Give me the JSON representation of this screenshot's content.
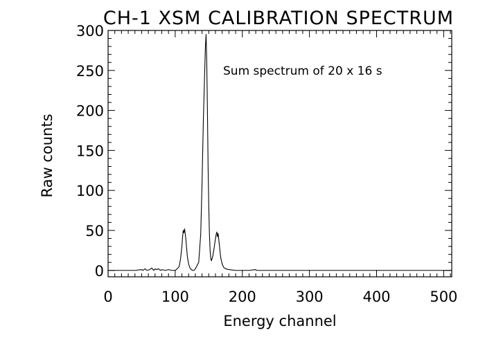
{
  "chart_data": {
    "type": "line",
    "title": "CH-1 XSM CALIBRATION SPECTRUM",
    "xlabel": "Energy channel",
    "ylabel": "Raw counts",
    "annotation": "Sum spectrum of 20 x 16 s",
    "xlim": [
      0,
      512
    ],
    "ylim": [
      -8,
      300
    ],
    "x_ticks": [
      0,
      100,
      200,
      300,
      400,
      500
    ],
    "x_tick_labels": [
      "0",
      "100",
      "200",
      "300",
      "400",
      "500"
    ],
    "y_ticks": [
      0,
      50,
      100,
      150,
      200,
      250,
      300
    ],
    "y_tick_labels": [
      "0",
      "50",
      "100",
      "150",
      "200",
      "250",
      "300"
    ],
    "grid": false,
    "series": [
      {
        "x": [
          0,
          40,
          50,
          52,
          55,
          58,
          62,
          65,
          68,
          70,
          72,
          75,
          78,
          80,
          85,
          90,
          95,
          100,
          103,
          106,
          108,
          110,
          111,
          112,
          113,
          114,
          115,
          116,
          117,
          118,
          120,
          122,
          124,
          126,
          128,
          130,
          135,
          138,
          140,
          142,
          144,
          145,
          146,
          147,
          148,
          149,
          150,
          151,
          152,
          153,
          154,
          156,
          158,
          160,
          161,
          162,
          163,
          164,
          165,
          166,
          167,
          168,
          170,
          172,
          175,
          180,
          190,
          200,
          210,
          220,
          221,
          222,
          230,
          300,
          400,
          500,
          512
        ],
        "y": [
          0,
          0,
          1,
          0,
          2,
          0,
          1,
          3,
          0,
          2,
          1,
          2,
          0,
          1,
          0,
          1,
          0,
          0,
          2,
          5,
          15,
          30,
          42,
          50,
          47,
          52,
          45,
          38,
          28,
          18,
          8,
          3,
          1,
          0,
          0,
          2,
          10,
          45,
          110,
          190,
          250,
          280,
          295,
          260,
          200,
          130,
          80,
          45,
          25,
          15,
          12,
          18,
          28,
          40,
          45,
          48,
          42,
          46,
          38,
          30,
          22,
          15,
          8,
          4,
          2,
          1,
          0,
          0,
          0,
          1,
          0,
          0,
          0,
          0,
          0,
          0,
          0
        ]
      }
    ]
  }
}
